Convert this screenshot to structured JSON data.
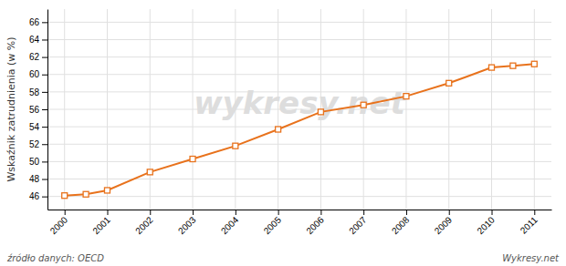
{
  "chart_data": {
    "type": "line",
    "y_label": "Wskaźnik zatrudnienia (w %)",
    "annotations": [
      "wykresy.net",
      "źródło danych:  OECD",
      "Wykresy.net"
    ],
    "x": [
      2000,
      2000.5,
      2001,
      2002,
      2003,
      2004,
      2005,
      2006,
      2007,
      2008,
      2009,
      2010,
      2010.5,
      2011
    ],
    "values": [
      46.1,
      46.25,
      46.7,
      48.8,
      50.3,
      51.8,
      53.7,
      55.7,
      56.5,
      57.5,
      59.0,
      60.8,
      61.0,
      61.2
    ],
    "color": "#e8721c",
    "marker": "square",
    "line_style": "solid",
    "xlim": [
      1999.6,
      2011.4
    ],
    "ylim": [
      44.5,
      67.5
    ],
    "xticks": [
      2000,
      2001,
      2002,
      2003,
      2004,
      2005,
      2006,
      2007,
      2008,
      2009,
      2010,
      2011
    ],
    "yticks": [
      46,
      48,
      50,
      52,
      54,
      56,
      58,
      60,
      62,
      64,
      66
    ],
    "grid": true
  }
}
